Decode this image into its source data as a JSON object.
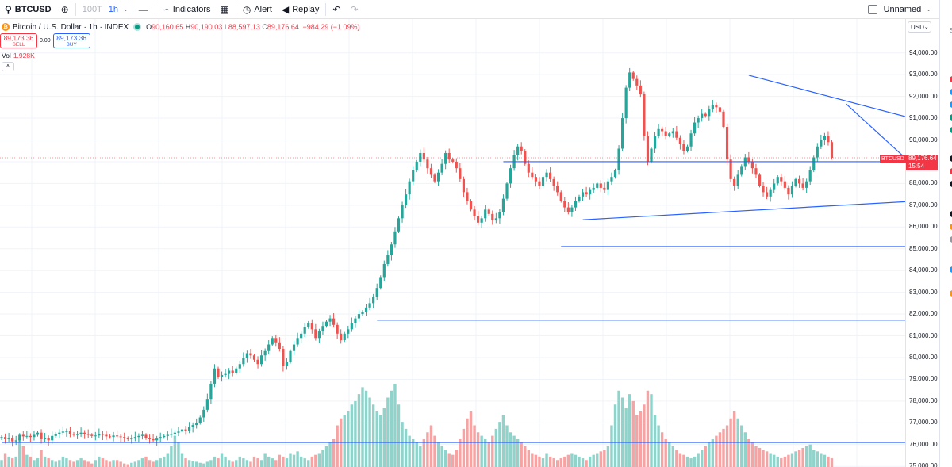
{
  "toolbar": {
    "symbol": "BTCUSD",
    "interval_muted": "100T",
    "interval": "1h",
    "indicators_label": "Indicators",
    "alert_label": "Alert",
    "replay_label": "Replay",
    "layout_name": "Unnamed"
  },
  "legend": {
    "title": "Bitcoin / U.S. Dollar · 1h · INDEX",
    "open": "90,160.65",
    "high": "90,190.03",
    "low": "88,597.13",
    "close": "89,176.64",
    "change": "−984.29 (−1.09%)",
    "sell_price": "89,173.36",
    "sell_label": "SELL",
    "spread": "0.00",
    "buy_price": "89,173.36",
    "buy_label": "BUY",
    "vol_label": "Vol",
    "vol_value": "1.928K"
  },
  "price_scale": {
    "currency": "USD",
    "ticks": [
      {
        "price": 94000,
        "label": "94,000.00"
      },
      {
        "price": 93000,
        "label": "93,000.00"
      },
      {
        "price": 92000,
        "label": "92,000.00"
      },
      {
        "price": 91000,
        "label": "91,000.00"
      },
      {
        "price": 90000,
        "label": "90,000.00"
      },
      {
        "price": 89000,
        "label": "89,000.00"
      },
      {
        "price": 88000,
        "label": "88,000.00"
      },
      {
        "price": 87000,
        "label": "87,000.00"
      },
      {
        "price": 86000,
        "label": "86,000.00"
      },
      {
        "price": 85000,
        "label": "85,000.00"
      },
      {
        "price": 84000,
        "label": "84,000.00"
      },
      {
        "price": 83000,
        "label": "83,000.00"
      },
      {
        "price": 82000,
        "label": "82,000.00"
      },
      {
        "price": 81000,
        "label": "81,000.00"
      },
      {
        "price": 80000,
        "label": "80,000.00"
      },
      {
        "price": 79000,
        "label": "79,000.00"
      },
      {
        "price": 78000,
        "label": "78,000.00"
      },
      {
        "price": 77000,
        "label": "77,000.00"
      },
      {
        "price": 76000,
        "label": "76,000.00"
      },
      {
        "price": 75000,
        "label": "75,000.00"
      }
    ],
    "current_symbol": "BTCUSD",
    "current_price": "89,176.64",
    "countdown": "15:54"
  },
  "colors": {
    "up": "#26a69a",
    "down": "#ef5350",
    "vol_up": "#8fd3cb",
    "vol_down": "#f5a3a3",
    "drawing": "#2962ff",
    "grid": "#f0f3fa",
    "current": "#f23645"
  },
  "chart_data": {
    "type": "candlestick",
    "ylim": [
      74900,
      94500
    ],
    "horizontal_levels": [
      {
        "price": 89000,
        "from": 139,
        "to": 358
      },
      {
        "price": 85100,
        "from": 155,
        "to": 362
      },
      {
        "price": 81720,
        "from": 104,
        "to": 362
      },
      {
        "price": 76100,
        "from": 0,
        "to": 375
      }
    ],
    "trendlines": [
      {
        "from": [
          207,
          92970
        ],
        "to": [
          324,
          87850
        ]
      },
      {
        "from": [
          161,
          86330
        ],
        "to": [
          324,
          87850
        ]
      },
      {
        "from": [
          234,
          91650
        ],
        "to": [
          264,
          87100
        ]
      }
    ],
    "closes": [
      76350,
      76250,
      76300,
      76150,
      76200,
      76450,
      76380,
      76400,
      76350,
      76450,
      76550,
      76250,
      76300,
      76200,
      76400,
      76500,
      76550,
      76600,
      76620,
      76500,
      76450,
      76480,
      76550,
      76500,
      76450,
      76400,
      76420,
      76500,
      76450,
      76380,
      76350,
      76420,
      76380,
      76350,
      76300,
      76250,
      76280,
      76350,
      76400,
      76450,
      76300,
      76250,
      76200,
      76280,
      76350,
      76400,
      76450,
      76500,
      76550,
      76600,
      76700,
      76650,
      76800,
      76900,
      77000,
      77250,
      77600,
      78100,
      78800,
      79500,
      79100,
      79200,
      79250,
      79400,
      79300,
      79500,
      79700,
      80000,
      80200,
      80100,
      79900,
      79700,
      80100,
      80300,
      80600,
      80900,
      80700,
      80400,
      79600,
      79800,
      80300,
      80600,
      80900,
      81100,
      81400,
      81600,
      81300,
      80900,
      81200,
      81450,
      81650,
      81800,
      81500,
      81100,
      80800,
      81100,
      81300,
      81600,
      81800,
      82000,
      82100,
      82300,
      82500,
      82800,
      83200,
      83700,
      84300,
      84700,
      85200,
      85800,
      86400,
      87000,
      87500,
      88100,
      88600,
      89000,
      89400,
      89100,
      88700,
      88400,
      88100,
      88500,
      88900,
      89400,
      89100,
      89000,
      88700,
      88200,
      87600,
      87200,
      86800,
      86500,
      86200,
      86400,
      86800,
      86600,
      86300,
      86400,
      86700,
      87300,
      88000,
      88700,
      89300,
      89700,
      89500,
      88900,
      88500,
      88300,
      88100,
      87900,
      88300,
      88500,
      88200,
      87900,
      87600,
      87200,
      86900,
      86700,
      86900,
      87200,
      87400,
      87600,
      87500,
      87700,
      87800,
      88000,
      87800,
      87700,
      88100,
      88300,
      88600,
      89600,
      91000,
      92400,
      93100,
      92800,
      92500,
      92100,
      90200,
      89000,
      89600,
      90200,
      90500,
      90400,
      90200,
      90300,
      90400,
      90100,
      89800,
      89500,
      89700,
      90300,
      90800,
      91000,
      91200,
      91100,
      91400,
      91600,
      91500,
      91300,
      90600,
      89100,
      88200,
      87900,
      88400,
      88800,
      89200,
      89000,
      88700,
      88400,
      87900,
      87600,
      87400,
      87700,
      88000,
      88300,
      88100,
      87800,
      87500,
      87900,
      88200,
      88000,
      87800,
      88100,
      88600,
      89200,
      89700,
      90000,
      90200,
      89900,
      89180
    ],
    "volumes": [
      20,
      40,
      30,
      25,
      30,
      80,
      60,
      35,
      30,
      20,
      25,
      50,
      30,
      25,
      20,
      15,
      20,
      30,
      25,
      20,
      15,
      20,
      25,
      20,
      15,
      10,
      20,
      30,
      25,
      20,
      15,
      20,
      20,
      15,
      10,
      8,
      12,
      15,
      20,
      25,
      30,
      20,
      15,
      20,
      25,
      30,
      40,
      60,
      90,
      70,
      40,
      25,
      20,
      18,
      15,
      12,
      10,
      15,
      20,
      30,
      25,
      40,
      30,
      20,
      15,
      20,
      30,
      25,
      20,
      15,
      30,
      25,
      20,
      40,
      30,
      25,
      20,
      35,
      30,
      25,
      40,
      35,
      45,
      30,
      25,
      20,
      30,
      35,
      40,
      50,
      60,
      70,
      80,
      120,
      140,
      150,
      160,
      180,
      190,
      210,
      230,
      220,
      200,
      180,
      160,
      150,
      170,
      200,
      220,
      240,
      180,
      130,
      110,
      90,
      80,
      70,
      60,
      80,
      100,
      120,
      90,
      70,
      60,
      50,
      40,
      35,
      50,
      80,
      110,
      140,
      160,
      120,
      100,
      90,
      80,
      70,
      90,
      110,
      130,
      150,
      120,
      100,
      90,
      80,
      70,
      60,
      50,
      40,
      35,
      30,
      25,
      40,
      30,
      25,
      20,
      25,
      30,
      35,
      40,
      35,
      30,
      25,
      20,
      30,
      35,
      40,
      45,
      50,
      60,
      120,
      180,
      220,
      200,
      170,
      210,
      190,
      150,
      160,
      180,
      220,
      210,
      150,
      120,
      100,
      80,
      70,
      60,
      50,
      40,
      35,
      30,
      25,
      30,
      40,
      50,
      60,
      70,
      80,
      90,
      100,
      110,
      120,
      140,
      160,
      140,
      120,
      100,
      80,
      70,
      60,
      55,
      50,
      45,
      40,
      35,
      30,
      25,
      30,
      35,
      40,
      45,
      50,
      55,
      60,
      65,
      50,
      45,
      40,
      35,
      30,
      25,
      20
    ]
  }
}
